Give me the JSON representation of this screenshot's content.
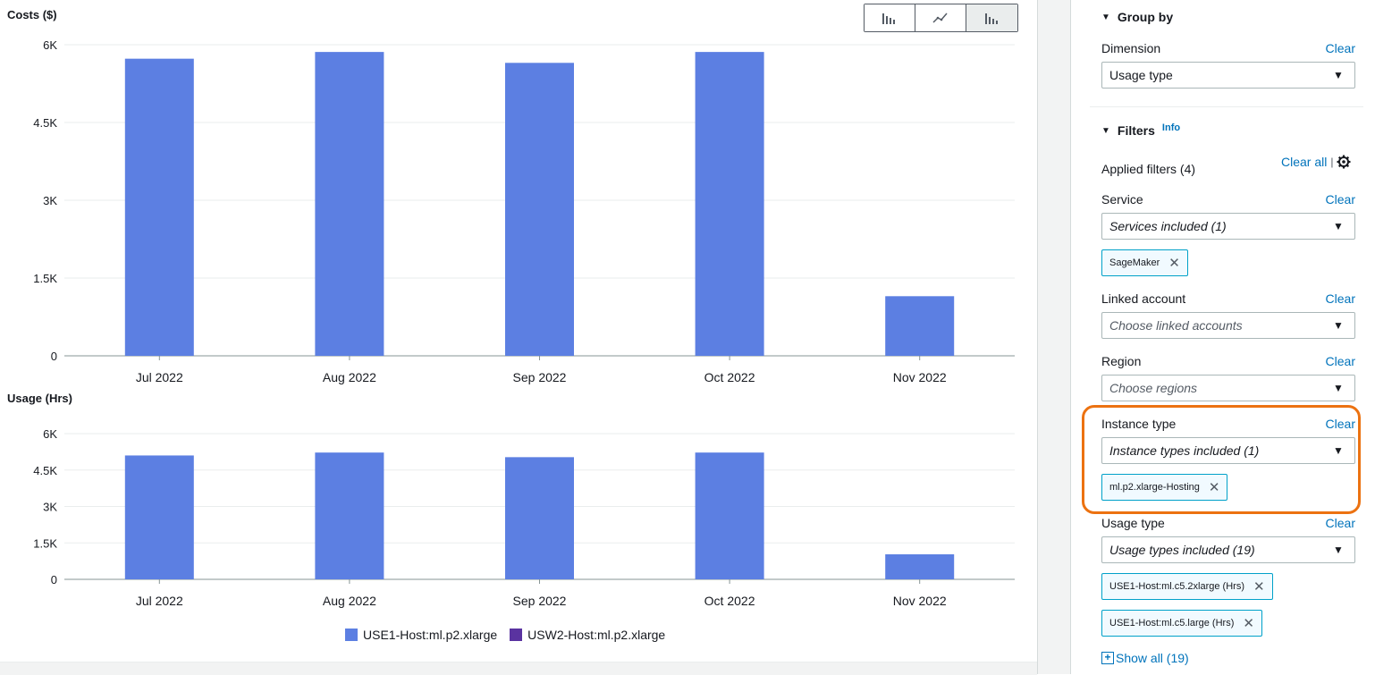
{
  "chart_toolbar": {
    "bar_icon": "bar-chart-icon",
    "line_icon": "line-chart-icon",
    "stacked_icon": "stacked-bar-chart-icon"
  },
  "chart_data": [
    {
      "type": "bar",
      "title": "Costs ($)",
      "categories": [
        "Jul 2022",
        "Aug 2022",
        "Sep 2022",
        "Oct 2022",
        "Nov 2022"
      ],
      "series": [
        {
          "name": "USE1-Host:ml.p2.xlarge",
          "values": [
            5730,
            5860,
            5650,
            5860,
            1150
          ]
        }
      ],
      "yticks": [
        "0",
        "1.5K",
        "3K",
        "4.5K",
        "6K"
      ],
      "ylim": [
        0,
        6000
      ],
      "grid": true
    },
    {
      "type": "bar",
      "title": "Usage (Hrs)",
      "categories": [
        "Jul 2022",
        "Aug 2022",
        "Sep 2022",
        "Oct 2022",
        "Nov 2022"
      ],
      "series": [
        {
          "name": "USE1-Host:ml.p2.xlarge",
          "values": [
            5100,
            5220,
            5030,
            5220,
            1030
          ]
        }
      ],
      "yticks": [
        "0",
        "1.5K",
        "3K",
        "4.5K",
        "6K"
      ],
      "ylim": [
        0,
        6000
      ],
      "grid": true
    }
  ],
  "legend": [
    {
      "label": "USE1-Host:ml.p2.xlarge",
      "color": "#5c7fe2"
    },
    {
      "label": "USW2-Host:ml.p2.xlarge",
      "color": "#5a33a0"
    }
  ],
  "colors": {
    "bar": "#5c7fe2",
    "accent": "#0073bb",
    "highlight": "#ec7211"
  },
  "panel": {
    "group_by": {
      "title": "Group by",
      "dimension_label": "Dimension",
      "clear": "Clear",
      "dimension_value": "Usage type"
    },
    "filters": {
      "title": "Filters",
      "info": "Info",
      "applied": "Applied filters (4)",
      "clear_all": "Clear all",
      "service": {
        "label": "Service",
        "clear": "Clear",
        "value": "Services included (1)",
        "tokens": [
          "SageMaker"
        ]
      },
      "linked_account": {
        "label": "Linked account",
        "clear": "Clear",
        "placeholder": "Choose linked accounts"
      },
      "region": {
        "label": "Region",
        "clear": "Clear",
        "placeholder": "Choose regions"
      },
      "instance_type": {
        "label": "Instance type",
        "clear": "Clear",
        "value": "Instance types included (1)",
        "tokens": [
          "ml.p2.xlarge-Hosting"
        ]
      },
      "usage_type": {
        "label": "Usage type",
        "clear": "Clear",
        "value": "Usage types included (19)",
        "tokens": [
          "USE1-Host:ml.c5.2xlarge (Hrs)",
          "USE1-Host:ml.c5.large (Hrs)"
        ]
      },
      "show_all": "Show all (19)"
    }
  }
}
